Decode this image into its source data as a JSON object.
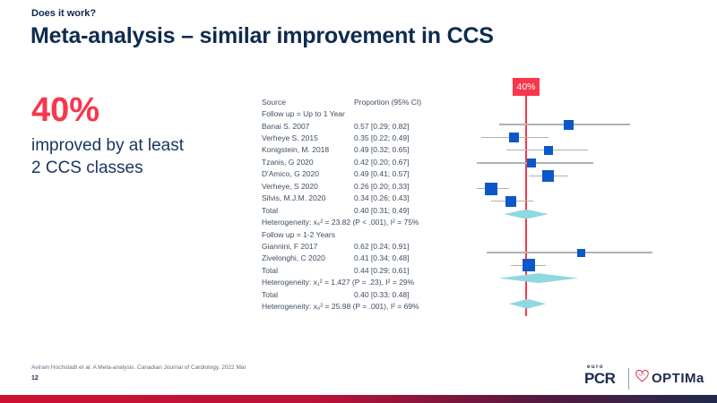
{
  "slide": {
    "kicker": "Does it work?",
    "title": "Meta-analysis – similar improvement in CCS"
  },
  "highlight": {
    "value": "40%",
    "caption": "improved by at least 2 CCS classes"
  },
  "chart_data": {
    "type": "forest",
    "title": "Meta-analysis – similar improvement in CCS",
    "columns": [
      "Source",
      "Proportion (95% CI)"
    ],
    "xlim": [
      0.05,
      1.06
    ],
    "grid": false,
    "legend": "none",
    "ref_line": {
      "value": 0.4,
      "label": "40%"
    },
    "rows": [
      {
        "kind": "group",
        "source": "Follow up = Up to 1 Year"
      },
      {
        "kind": "study",
        "source": "Banai S. 2007",
        "ci_text": "0.57 [0.29; 0.82]",
        "p": 0.57,
        "lo": 0.29,
        "hi": 0.82,
        "size": 11
      },
      {
        "kind": "study",
        "source": "Verheye S. 2015",
        "ci_text": "0.35 [0.22; 0.49]",
        "p": 0.35,
        "lo": 0.22,
        "hi": 0.49,
        "size": 11
      },
      {
        "kind": "study",
        "source": "Konigstein, M. 2018",
        "ci_text": "0.49 [0.32; 0.65]",
        "p": 0.49,
        "lo": 0.32,
        "hi": 0.65,
        "size": 10
      },
      {
        "kind": "study",
        "source": "Tzanis, G 2020",
        "ci_text": "0.42 [0.20; 0.67]",
        "p": 0.42,
        "lo": 0.2,
        "hi": 0.67,
        "size": 10
      },
      {
        "kind": "study",
        "source": "D'Amico, G 2020",
        "ci_text": "0.49 [0.41; 0.57]",
        "p": 0.49,
        "lo": 0.41,
        "hi": 0.57,
        "size": 13
      },
      {
        "kind": "study",
        "source": "Verheye, S 2020",
        "ci_text": "0.26 [0.20; 0.33]",
        "p": 0.26,
        "lo": 0.2,
        "hi": 0.33,
        "size": 14
      },
      {
        "kind": "study",
        "source": "Silvis, M.J.M. 2020",
        "ci_text": "0.34 [0.26; 0.43]",
        "p": 0.34,
        "lo": 0.26,
        "hi": 0.43,
        "size": 12
      },
      {
        "kind": "total",
        "source": "Total",
        "ci_text": "0.40 [0.31; 0.49]",
        "p": 0.4,
        "lo": 0.31,
        "hi": 0.49
      },
      {
        "kind": "het",
        "source": "Heterogeneity: x₆² = 23.82 (P < .001), I² = 75%"
      },
      {
        "kind": "group",
        "source": "Follow up = 1-2 Years"
      },
      {
        "kind": "study",
        "source": "Giannini, F 2017",
        "ci_text": "0.62 [0.24; 0.91]",
        "p": 0.62,
        "lo": 0.24,
        "hi": 0.91,
        "size": 9
      },
      {
        "kind": "study",
        "source": "Zivelonghi, C 2020",
        "ci_text": "0.41 [0.34; 0.48]",
        "p": 0.41,
        "lo": 0.34,
        "hi": 0.48,
        "size": 14
      },
      {
        "kind": "total",
        "source": "Total",
        "ci_text": "0.44 [0.29; 0.61]",
        "p": 0.44,
        "lo": 0.29,
        "hi": 0.61
      },
      {
        "kind": "het",
        "source": "Heterogeneity: x₁² = 1.427 (P = .23), I² = 29%"
      },
      {
        "kind": "total",
        "source": "Total",
        "ci_text": "0.40 [0.33; 0.48]",
        "p": 0.4,
        "lo": 0.33,
        "hi": 0.48
      },
      {
        "kind": "het",
        "source": "Heterogeneity: x₈² = 25.98 (P = .001), I² = 69%"
      }
    ]
  },
  "footer": {
    "citation": "Aviram Hochstadt et al. A Meta-analysis. Canadian Journal of Cardiology. 2022 Mar",
    "page": "12",
    "logos": {
      "euro": "euro",
      "pcr": "PCR",
      "optima": "OPTIMa"
    }
  },
  "colors": {
    "accent_red": "#F8374B",
    "navy": "#0F2A4E",
    "point_blue": "#0D57C9",
    "diamond_cyan": "#90D8DF",
    "ci_gray": "#AFB2B6",
    "table_text": "#3E4E60"
  }
}
